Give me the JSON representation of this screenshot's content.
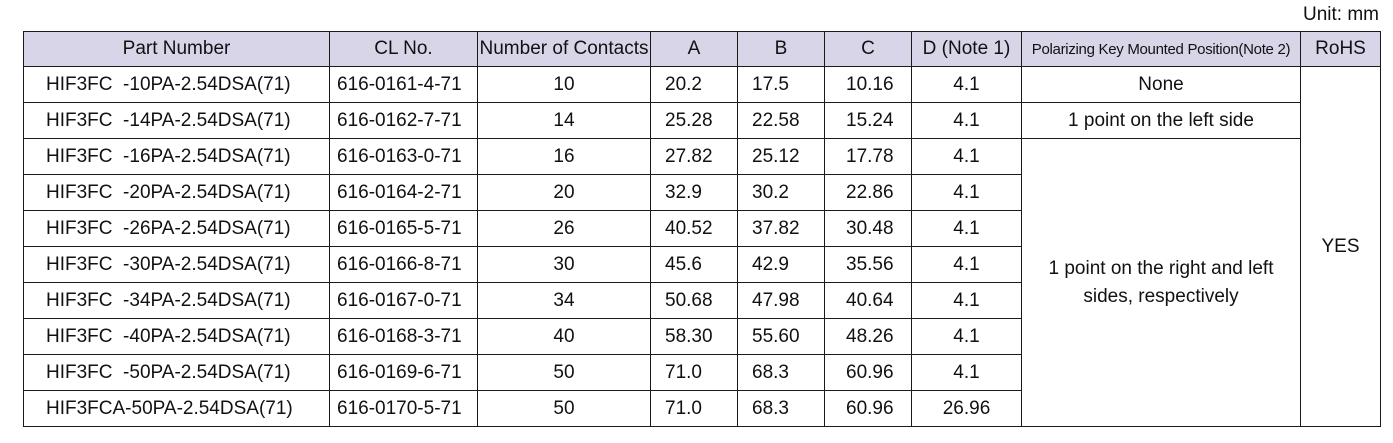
{
  "unit_label": "Unit: mm",
  "headers": {
    "part_number": "Part Number",
    "cl_no": "CL No.",
    "contacts": "Number of Contacts",
    "a": "A",
    "b": "B",
    "c": "C",
    "d": "D (Note 1)",
    "polarizing": "Polarizing Key Mounted Position(Note 2)",
    "rohs": "RoHS"
  },
  "rows": [
    {
      "part": "HIF3FC  -10PA-2.54DSA(71)",
      "cl": "616-0161-4-71",
      "contacts": "10",
      "a": "20.2",
      "b": "17.5",
      "c": "10.16",
      "d": "4.1"
    },
    {
      "part": "HIF3FC  -14PA-2.54DSA(71)",
      "cl": "616-0162-7-71",
      "contacts": "14",
      "a": "25.28",
      "b": "22.58",
      "c": "15.24",
      "d": "4.1"
    },
    {
      "part": "HIF3FC  -16PA-2.54DSA(71)",
      "cl": "616-0163-0-71",
      "contacts": "16",
      "a": "27.82",
      "b": "25.12",
      "c": "17.78",
      "d": "4.1"
    },
    {
      "part": "HIF3FC  -20PA-2.54DSA(71)",
      "cl": "616-0164-2-71",
      "contacts": "20",
      "a": "32.9",
      "b": "30.2",
      "c": "22.86",
      "d": "4.1"
    },
    {
      "part": "HIF3FC  -26PA-2.54DSA(71)",
      "cl": "616-0165-5-71",
      "contacts": "26",
      "a": "40.52",
      "b": "37.82",
      "c": "30.48",
      "d": "4.1"
    },
    {
      "part": "HIF3FC  -30PA-2.54DSA(71)",
      "cl": "616-0166-8-71",
      "contacts": "30",
      "a": "45.6",
      "b": "42.9",
      "c": "35.56",
      "d": "4.1"
    },
    {
      "part": "HIF3FC  -34PA-2.54DSA(71)",
      "cl": "616-0167-0-71",
      "contacts": "34",
      "a": "50.68",
      "b": "47.98",
      "c": "40.64",
      "d": "4.1"
    },
    {
      "part": "HIF3FC  -40PA-2.54DSA(71)",
      "cl": "616-0168-3-71",
      "contacts": "40",
      "a": "58.30",
      "b": "55.60",
      "c": "48.26",
      "d": "4.1"
    },
    {
      "part": "HIF3FC  -50PA-2.54DSA(71)",
      "cl": "616-0169-6-71",
      "contacts": "50",
      "a": "71.0",
      "b": "68.3",
      "c": "60.96",
      "d": "4.1"
    },
    {
      "part": "HIF3FCA-50PA-2.54DSA(71)",
      "cl": "616-0170-5-71",
      "contacts": "50",
      "a": "71.0",
      "b": "68.3",
      "c": "60.96",
      "d": "26.96"
    }
  ],
  "polarizing": {
    "row1": "None",
    "row2": "1 point on the left side",
    "rest_line1": "1 point on the right and left",
    "rest_line2": "sides, respectively"
  },
  "rohs": "YES",
  "colors": {
    "header_bg": "#d9d5e8",
    "border": "#1a1a1a"
  }
}
